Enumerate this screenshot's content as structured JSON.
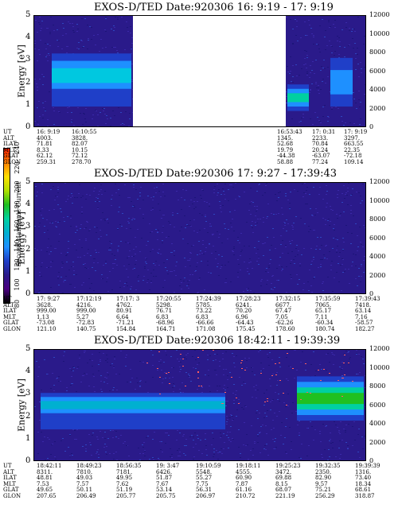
{
  "colors": {
    "background_fill": "#2a1a8a",
    "colorbar": [
      "#000000",
      "#4b0082",
      "#2a1a8a",
      "#1f3fc8",
      "#1e90ff",
      "#00b0d0",
      "#00d0a0",
      "#20c020",
      "#b0e000",
      "#ffe000",
      "#ff8000",
      "#ff2000"
    ]
  },
  "colorbar": {
    "label": "Second Harmonic Current",
    "ticks": [
      "80",
      "100",
      "120",
      "140",
      "160",
      "180",
      "200",
      "220",
      "240"
    ]
  },
  "panels": [
    {
      "title": "EXOS-D/TED   Date:920306  16: 9:19 - 17: 9:19",
      "ylabel_left": "Energy [eV]",
      "ylabel_right": "Temperature [K]",
      "yticks_left": [
        "0",
        "1",
        "2",
        "3",
        "4",
        "5"
      ],
      "yticks_right": [
        "0",
        "2000",
        "4000",
        "6000",
        "8000",
        "10000",
        "12000"
      ],
      "row_labels": [
        "UT",
        "ALT",
        "ILAT",
        "MLT",
        "GLAT",
        "GLON"
      ],
      "columns": [
        [
          "16: 9:19",
          "4003.",
          "71.81",
          "8.33",
          "62.12",
          "259.31"
        ],
        [
          "16:10:55",
          "3828.",
          "82.07",
          "10.15",
          "72.12",
          "278.70"
        ],
        [
          "16:53:43",
          "1345.",
          "52.68",
          "19.79",
          "-44.38",
          "58.88"
        ],
        [
          "17: 0:31",
          "2233.",
          "70.84",
          "20.24",
          "-63.07",
          "77.24"
        ],
        [
          "17: 9:19",
          "3297.",
          "663.55",
          "22.35",
          "-72.18",
          "109.14"
        ]
      ]
    },
    {
      "title": "EXOS-D/TED   Date:920306  17: 9:27 - 17:39:43",
      "ylabel_left": "Energy [eV]",
      "ylabel_right": "Temperature [K]",
      "yticks_left": [
        "0",
        "1",
        "2",
        "3",
        "4",
        "5"
      ],
      "yticks_right": [
        "0",
        "2000",
        "4000",
        "6000",
        "8000",
        "10000",
        "12000"
      ],
      "row_labels": [
        "UT",
        "ALT",
        "ILAT",
        "MLT",
        "GLAT",
        "GLON"
      ],
      "columns": [
        [
          "17: 9:27",
          "3628.",
          "999.00",
          "1.13",
          "-73.08",
          "121.10"
        ],
        [
          "17:12:19",
          "4216.",
          "999.00",
          "5.27",
          "-72.83",
          "140.75"
        ],
        [
          "17:17: 3",
          "4762.",
          "80.91",
          "6.64",
          "-71.21",
          "154.84"
        ],
        [
          "17:20:55",
          "5298.",
          "76.71",
          "6.83",
          "-68.96",
          "164.71"
        ],
        [
          "17:24:39",
          "5785.",
          "73.22",
          "6.83",
          "-66.66",
          "171.08"
        ],
        [
          "17:28:23",
          "6241.",
          "70.20",
          "6.96",
          "-64.43",
          "175.45"
        ],
        [
          "17:32:15",
          "6677.",
          "67.47",
          "7.05",
          "-62.26",
          "178.60"
        ],
        [
          "17:35:59",
          "7065.",
          "65.17",
          "7.11",
          "-60.34",
          "180.74"
        ],
        [
          "17:39:43",
          "7418.",
          "63.14",
          "7.16",
          "-58.57",
          "182.27"
        ]
      ]
    },
    {
      "title": "EXOS-D/TED   Date:920306  18:42:11 - 19:39:39",
      "ylabel_left": "Energy [eV]",
      "ylabel_right": "Temperature [K]",
      "yticks_left": [
        "0",
        "1",
        "2",
        "3",
        "4",
        "5"
      ],
      "yticks_right": [
        "0",
        "2000",
        "4000",
        "6000",
        "8000",
        "10000",
        "12000"
      ],
      "row_labels": [
        "UT",
        "ALT",
        "ILAT",
        "MLT",
        "GLAT",
        "GLON"
      ],
      "columns": [
        [
          "18:42:11",
          "8311.",
          "48.81",
          "7.53",
          "49.65",
          "207.65"
        ],
        [
          "18:49:23",
          "7810.",
          "49.03",
          "7.57",
          "50.11",
          "206.49"
        ],
        [
          "18:56:35",
          "7181.",
          "49.95",
          "7.62",
          "51.19",
          "205.77"
        ],
        [
          "19: 3:47",
          "6426.",
          "51.87",
          "7.67",
          "53.14",
          "205.75"
        ],
        [
          "19:10:59",
          "5548.",
          "55.27",
          "7.75",
          "56.31",
          "206.97"
        ],
        [
          "19:18:11",
          "4555.",
          "60.90",
          "7.87",
          "61.16",
          "210.72"
        ],
        [
          "19:25:23",
          "3472.",
          "69.88",
          "8.15",
          "68.07",
          "221.19"
        ],
        [
          "19:32:35",
          "2350.",
          "82.90",
          "9.57",
          "75.21",
          "256.29"
        ],
        [
          "19:39:39",
          "1316.",
          "73.40",
          "18.34",
          "68.61",
          "318.87"
        ]
      ]
    }
  ],
  "chart_data": [
    {
      "type": "heatmap",
      "title": "EXOS-D/TED   Date:920306  16: 9:19 - 17: 9:19",
      "xlabel": "UT",
      "ylabel": "Energy [eV]",
      "ylabel_right": "Temperature [K]",
      "ylim": [
        0,
        5
      ],
      "ylim_right": [
        0,
        12000
      ],
      "x": [
        "16: 9:19",
        "16:10:55",
        "16:53:43",
        "17: 0:31",
        "17: 9:19"
      ],
      "colorbar_label": "Second Harmonic Current",
      "colorbar_range": [
        80,
        240
      ],
      "data_gap": [
        "16:15",
        "16:52"
      ],
      "features": [
        {
          "start": "16: 9:19",
          "end": "16:15",
          "energy_center_eV": 2.3,
          "level": "high"
        },
        {
          "start": "16:53:43",
          "end": "16:56",
          "energy_center_eV": 1.3,
          "level": "high"
        },
        {
          "start": "17: 5",
          "end": "17: 9:19",
          "energy_center_eV": 2.0,
          "level": "medium"
        }
      ]
    },
    {
      "type": "heatmap",
      "title": "EXOS-D/TED   Date:920306  17: 9:27 - 17:39:43",
      "xlabel": "UT",
      "ylabel": "Energy [eV]",
      "ylabel_right": "Temperature [K]",
      "ylim": [
        0,
        5
      ],
      "ylim_right": [
        0,
        12000
      ],
      "x": [
        "17: 9:27",
        "17:12:19",
        "17:17: 3",
        "17:20:55",
        "17:24:39",
        "17:28:23",
        "17:32:15",
        "17:35:59",
        "17:39:43"
      ],
      "colorbar_label": "Second Harmonic Current",
      "colorbar_range": [
        80,
        240
      ],
      "features": []
    },
    {
      "type": "heatmap",
      "title": "EXOS-D/TED   Date:920306  18:42:11 - 19:39:39",
      "xlabel": "UT",
      "ylabel": "Energy [eV]",
      "ylabel_right": "Temperature [K]",
      "ylim": [
        0,
        5
      ],
      "ylim_right": [
        0,
        12000
      ],
      "x": [
        "18:42:11",
        "18:49:23",
        "18:56:35",
        "19: 3:47",
        "19:10:59",
        "19:18:11",
        "19:25:23",
        "19:32:35",
        "19:39:39"
      ],
      "colorbar_label": "Second Harmonic Current",
      "colorbar_range": [
        80,
        240
      ],
      "features": [
        {
          "start": "18:42:11",
          "end": "19:15",
          "energy_center_eV": 2.5,
          "level": "medium"
        },
        {
          "start": "19:27",
          "end": "19:39:39",
          "energy_center_eV": 2.8,
          "level": "high"
        }
      ]
    }
  ]
}
